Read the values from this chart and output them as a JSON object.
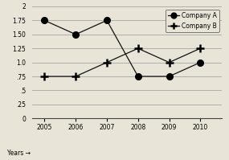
{
  "years": [
    2005,
    2006,
    2007,
    2008,
    2009,
    2010
  ],
  "company_A": [
    1.75,
    1.5,
    1.75,
    0.75,
    0.75,
    1.0
  ],
  "company_B": [
    0.75,
    0.75,
    1.0,
    1.25,
    1.0,
    1.25
  ],
  "ylim": [
    0,
    2
  ],
  "yticks": [
    0,
    0.25,
    0.5,
    0.75,
    1.0,
    1.25,
    1.5,
    1.75,
    2.0
  ],
  "ytick_labels": [
    "0",
    ".25",
    ".5",
    ".75",
    "1.0",
    "1.25",
    "1.50",
    "1.75",
    "2"
  ],
  "xlabel": "Years →",
  "legend_A": "Company A",
  "legend_B": "Company B",
  "bg_color": "#e8e4d8",
  "line_color": "#111111"
}
